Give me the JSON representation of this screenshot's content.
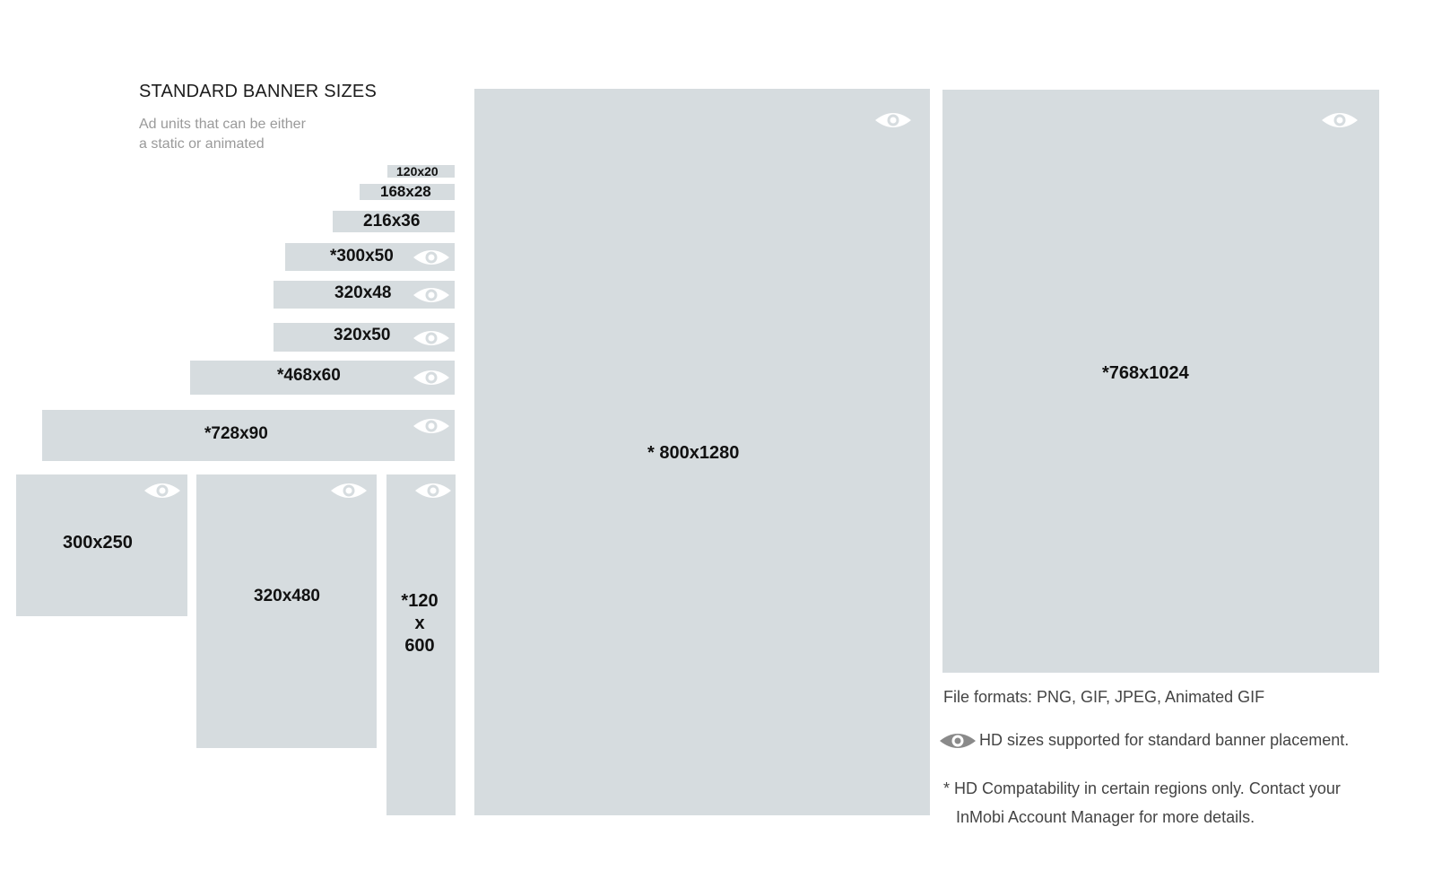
{
  "header": {
    "title": "STANDARD BANNER SIZES",
    "subtitle_line1": "Ad units that can be either",
    "subtitle_line2": "a static or animated"
  },
  "banners": {
    "b120x20": {
      "label": "120x20",
      "hd": false
    },
    "b168x28": {
      "label": "168x28",
      "hd": false
    },
    "b216x36": {
      "label": "216x36",
      "hd": false
    },
    "b300x50": {
      "label": "*300x50",
      "hd": true
    },
    "b320x48": {
      "label": "320x48",
      "hd": true
    },
    "b320x50": {
      "label": "320x50",
      "hd": true
    },
    "b468x60": {
      "label": "*468x60",
      "hd": true
    },
    "b728x90": {
      "label": "*728x90",
      "hd": true
    },
    "b300x250": {
      "label": "300x250",
      "hd": true
    },
    "b320x480": {
      "label": "320x480",
      "hd": true
    },
    "b120x600": {
      "label_line1": "*120",
      "label_line2": "x",
      "label_line3": "600",
      "hd": true
    },
    "b800x1280": {
      "label": "* 800x1280",
      "hd": true
    },
    "b768x1024": {
      "label": "*768x1024",
      "hd": true
    }
  },
  "notes": {
    "formats": "File formats: PNG, GIF, JPEG, Animated GIF",
    "hd": "HD sizes supported for standard banner placement.",
    "compat_line1": "* HD Compatability in certain regions only. Contact your",
    "compat_line2": "InMobi Account Manager for more details."
  },
  "colors": {
    "box": "#d6dcdf",
    "eye_on_box": "#ffffff",
    "eye_legend": "#8a8a8a"
  },
  "icons": {
    "hd": "eye-icon"
  }
}
